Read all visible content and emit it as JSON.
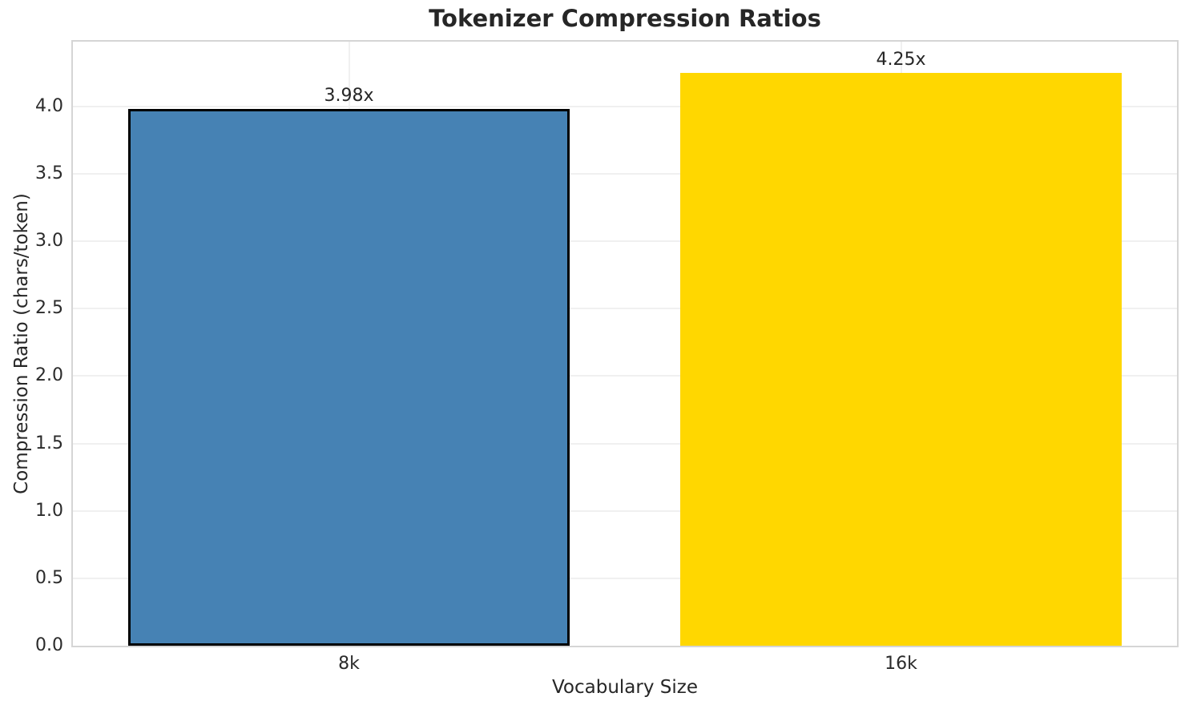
{
  "title": "Tokenizer Compression Ratios",
  "chart_data": {
    "type": "bar",
    "title": "Tokenizer Compression Ratios",
    "xlabel": "Vocabulary Size",
    "ylabel": "Compression Ratio (chars/token)",
    "categories": [
      "8k",
      "16k"
    ],
    "values": [
      3.98,
      4.25
    ],
    "bar_labels": [
      "3.98x",
      "4.25x"
    ],
    "bar_colors": [
      "#4682B4",
      "#FFD700"
    ],
    "bar_edge_colors": [
      "#000000",
      "none"
    ],
    "bar_width_fraction": 0.8,
    "ylim": [
      0,
      4.48
    ],
    "yticks": [
      0.0,
      0.5,
      1.0,
      1.5,
      2.0,
      2.5,
      3.0,
      3.5,
      4.0
    ],
    "ytick_labels": [
      "0.0",
      "0.5",
      "1.0",
      "1.5",
      "2.0",
      "2.5",
      "3.0",
      "3.5",
      "4.0"
    ],
    "grid": true,
    "legend_position": "none"
  },
  "style_colors": {
    "background": "#ffffff",
    "gridline": "#f0f0f0",
    "spine": "#d5d5d5",
    "text": "#262626"
  }
}
